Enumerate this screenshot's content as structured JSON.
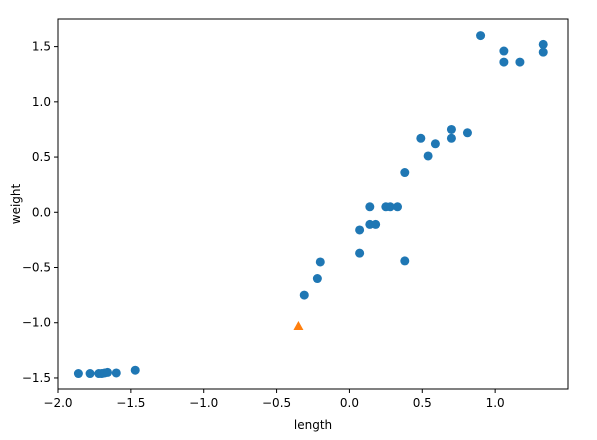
{
  "chart_data": {
    "type": "scatter",
    "xlabel": "length",
    "ylabel": "weight",
    "xlim": [
      -2.0,
      1.5
    ],
    "ylim": [
      -1.6,
      1.75
    ],
    "xticks": [
      -2.0,
      -1.5,
      -1.0,
      -0.5,
      0.0,
      0.5,
      1.0
    ],
    "xtick_labels": [
      "−2.0",
      "−1.5",
      "−1.0",
      "−0.5",
      "0.0",
      "0.5",
      "1.0"
    ],
    "yticks": [
      -1.5,
      -1.0,
      -0.5,
      0.0,
      0.5,
      1.0,
      1.5
    ],
    "ytick_labels": [
      "−1.5",
      "−1.0",
      "−0.5",
      "0.0",
      "0.5",
      "1.0",
      "1.5"
    ],
    "grid": false,
    "series": [
      {
        "marker": "circle",
        "color": "#1f77b4",
        "points": [
          [
            -1.86,
            -1.46
          ],
          [
            -1.78,
            -1.46
          ],
          [
            -1.72,
            -1.46
          ],
          [
            -1.7,
            -1.46
          ],
          [
            -1.68,
            -1.455
          ],
          [
            -1.66,
            -1.45
          ],
          [
            -1.6,
            -1.455
          ],
          [
            -1.47,
            -1.43
          ],
          [
            -0.31,
            -0.75
          ],
          [
            -0.22,
            -0.6
          ],
          [
            -0.2,
            -0.45
          ],
          [
            0.07,
            -0.37
          ],
          [
            0.07,
            -0.16
          ],
          [
            0.14,
            -0.11
          ],
          [
            0.14,
            0.05
          ],
          [
            0.18,
            -0.11
          ],
          [
            0.25,
            0.05
          ],
          [
            0.28,
            0.05
          ],
          [
            0.33,
            0.05
          ],
          [
            0.38,
            0.36
          ],
          [
            0.38,
            -0.44
          ],
          [
            0.49,
            0.67
          ],
          [
            0.54,
            0.51
          ],
          [
            0.59,
            0.62
          ],
          [
            0.7,
            0.67
          ],
          [
            0.7,
            0.75
          ],
          [
            0.81,
            0.72
          ],
          [
            0.9,
            1.6
          ],
          [
            1.06,
            1.46
          ],
          [
            1.06,
            1.36
          ],
          [
            1.17,
            1.36
          ],
          [
            1.33,
            1.52
          ],
          [
            1.33,
            1.45
          ]
        ]
      },
      {
        "marker": "triangle",
        "color": "#ff7f0e",
        "points": [
          [
            -0.35,
            -1.03
          ]
        ]
      }
    ]
  }
}
